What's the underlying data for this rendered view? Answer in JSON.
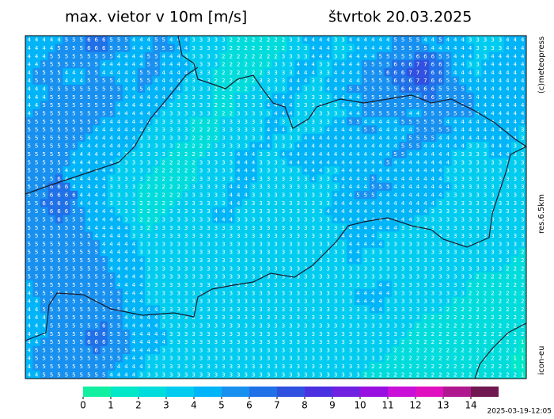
{
  "header": {
    "title": "max. vietor v 10m [m/s]",
    "date": "štvrtok 20.03.2025"
  },
  "side_labels": {
    "copyright": "(c)meteopress",
    "resolution": "res.6.5km",
    "model": "icon-eu"
  },
  "timestamp": "2025-03-19-12:05",
  "colorbar": {
    "ticks": [
      0,
      1,
      2,
      3,
      4,
      5,
      6,
      7,
      8,
      9,
      10,
      11,
      12,
      13,
      14
    ],
    "colors": [
      "#10f0a0",
      "#00e8c8",
      "#00dcdc",
      "#00ccf0",
      "#00b4f8",
      "#1890f0",
      "#2070e8",
      "#3050e0",
      "#4a30e0",
      "#7020e0",
      "#9810e0",
      "#c810d8",
      "#e010c0",
      "#b01890",
      "#701850"
    ]
  },
  "map": {
    "grid": [
      "4444455566655544455444333332222222233444433444444555544544433333444",
      "4444555566655544455544333332222222233344433344444555554444443333444",
      "4445555555554444554443333322222222333344433444455555666554443344444",
      "4455555555444444554444333322222223334443344445555666776654433444444",
      "4555544455444445554444333222222233334443344445556667776654443444444",
      "4555544455554445544443333222222333344433444445555666776655444444444",
      "4445555555555445444443333222223333344333444555555566666555544444444",
      "4445555555555444444433333222333334443333344445555555566555554444444",
      "4455555555554444444333333222333344443333334445555555555555554444444",
      "4555555555554444443333333222333334443333333445555554455555554444444",
      "5555555555444444433333222233333344333333344554444455555544444444444",
      "5555555554444444333333222233333344433333444445544444555554444444443",
      "5555555544444443333333222233333343333444444444444445555444444444443",
      "5555555444444443333322222333334443334444444444444455544444433344433",
      "5555554444444333333222223333444333444444444444444554444443333344433",
      "5555554444443333332222233333444333344444444444445444444443333333333",
      "5555544444443333322222233333444333333444334444444444444433333333333",
      "5555644444433333222222233333444333333343344444544444444433333333333",
      "5556664444433332222222333334443333333333334444555444444443333333333",
      "5556666444433332222223333334443333333333344455544444444433333333333",
      "5566665444433332222233333334433333333333344444444444444333333333333",
      "5556665544443332222333333444333333333333444444444444443333333333333",
      "5555655544444332223333333444333333333333344444444444333333333333333",
      "5555555544444433233333333333333333333333333444444433333333333333333",
      "5555555554444433333333333333333333333333334444433333333333333333333",
      "5555555555444443333333333333333333333333333444443333333333333333333",
      "5555555555444443333333333333333333333333333443333333333333333333332",
      "5555555555544444333333333333333333333333333443333333333333333333322",
      "5555555555544444333333333333333333333333333333333333333333333333222",
      "5555555555554444333333333333333333333333333333333333333333332222222",
      "4555555555554444333333333333333333333333333333344333333333322222222",
      "4555555555555444333333333333333333333333333344444333333333322222222",
      "4455555555555444333333333333333333333333333344443333333332222222222",
      "4455555555555444443333333333333333333333333333443333333322222222222",
      "4445555555555444443333333333333333333333333333333333322222222222222",
      "4445555555655444443333333333333333333333333333333333222222222222222",
      "4445555566655544444333333333333333333333333333333332222222222222222",
      "4455555566655544444333333333333333333333333333333322222222222222221",
      "4555555556555544443333333333333333333333333333333222222222222222221",
      "4555555555555444333333333333333333333333333333332222222222222222211",
      "4555555555554444333333333333333333333333333333222222222222222222211",
      "4455555555544443333333333333333333333333333332222222222222222222221"
    ]
  }
}
